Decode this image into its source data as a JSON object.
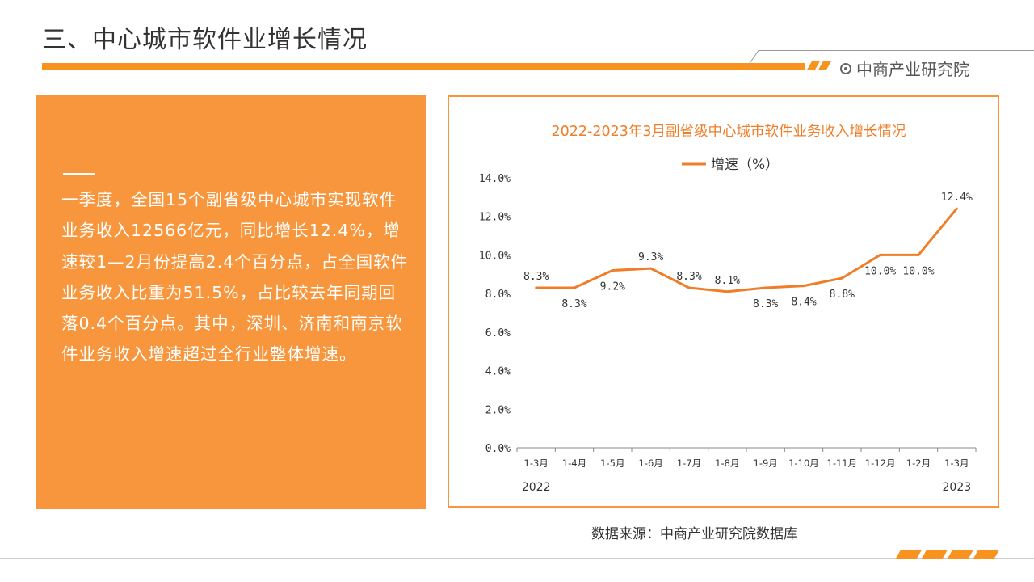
{
  "page": {
    "title": "三、中心城市软件业增长情况",
    "logo_text": "中商产业研究院",
    "source": "数据来源：中商产业研究院数据库",
    "accent_color": "#F7931E"
  },
  "panel": {
    "text": "一季度，全国15个副省级中心城市实现软件业务收入12566亿元，同比增长12.4%，增速较1—2月份提高2.4个百分点，占全国软件业务收入比重为51.5%，占比较去年同期回落0.4个百分点。其中，深圳、济南和南京软件业务收入增速超过全行业整体增速。"
  },
  "chart_data": {
    "type": "line",
    "title": "2022-2023年3月副省级中心城市软件业务收入增长情况",
    "categories": [
      "1-3月",
      "1-4月",
      "1-5月",
      "1-6月",
      "1-7月",
      "1-8月",
      "1-9月",
      "1-10月",
      "1-11月",
      "1-12月",
      "1-2月",
      "1-3月"
    ],
    "year_labels": [
      {
        "label": "2022",
        "index": 0
      },
      {
        "label": "2023",
        "index": 11
      }
    ],
    "series": [
      {
        "name": "增速（%）",
        "color": "#F07D28",
        "values": [
          8.3,
          8.3,
          9.2,
          9.3,
          8.3,
          8.1,
          8.3,
          8.4,
          8.8,
          10.0,
          10.0,
          12.4
        ],
        "labels": [
          "8.3%",
          "8.3%",
          "9.2%",
          "9.3%",
          "8.3%",
          "8.1%",
          "8.3%",
          "8.4%",
          "8.8%",
          "10.0%",
          "10.0%",
          "12.4%"
        ],
        "label_pos": [
          "above",
          "below",
          "below",
          "above",
          "above",
          "above",
          "below",
          "below",
          "below",
          "below",
          "below",
          "above"
        ]
      }
    ],
    "ylim": [
      0,
      14
    ],
    "yticks": [
      0,
      2,
      4,
      6,
      8,
      10,
      12,
      14
    ],
    "ytick_labels": [
      "0.0%",
      "2.0%",
      "4.0%",
      "6.0%",
      "8.0%",
      "10.0%",
      "12.0%",
      "14.0%"
    ],
    "legend_position": "top",
    "grid": false
  }
}
